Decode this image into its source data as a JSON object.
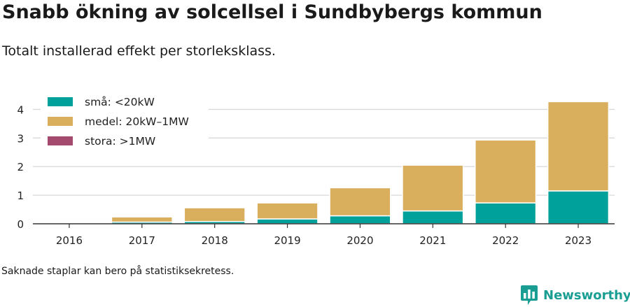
{
  "title": "Snabb ökning av solcellsel i Sundbybergs kommun",
  "subtitle": "Totalt installerad effekt per storleksklass.",
  "footnote": "Saknade staplar kan bero på statistiksekretess.",
  "brand": {
    "name": "Newsworthy",
    "logo_icon": "bar-chart-logo-icon",
    "color": "#1a9e94"
  },
  "chart_data": {
    "type": "bar",
    "stacked": true,
    "categories": [
      "2016",
      "2017",
      "2018",
      "2019",
      "2020",
      "2021",
      "2022",
      "2023"
    ],
    "series": [
      {
        "name": "små: <20kW",
        "color": "#00a19a",
        "values": [
          0.0,
          0.06,
          0.08,
          0.17,
          0.28,
          0.45,
          0.73,
          1.15
        ]
      },
      {
        "name": "medel: 20kW–1MW",
        "color": "#d9ae5d",
        "values": [
          0.0,
          0.18,
          0.48,
          0.56,
          0.98,
          1.6,
          2.2,
          3.12
        ]
      },
      {
        "name": "stora: >1MW",
        "color": "#a44a6e",
        "values": [
          0,
          0,
          0,
          0,
          0,
          0,
          0,
          0
        ]
      }
    ],
    "ylim": [
      0,
      4.5
    ],
    "yticks": [
      "0",
      "1",
      "2",
      "3",
      "4"
    ],
    "xlabel": "",
    "ylabel": "",
    "grid": true,
    "legend_position": "top-left"
  }
}
